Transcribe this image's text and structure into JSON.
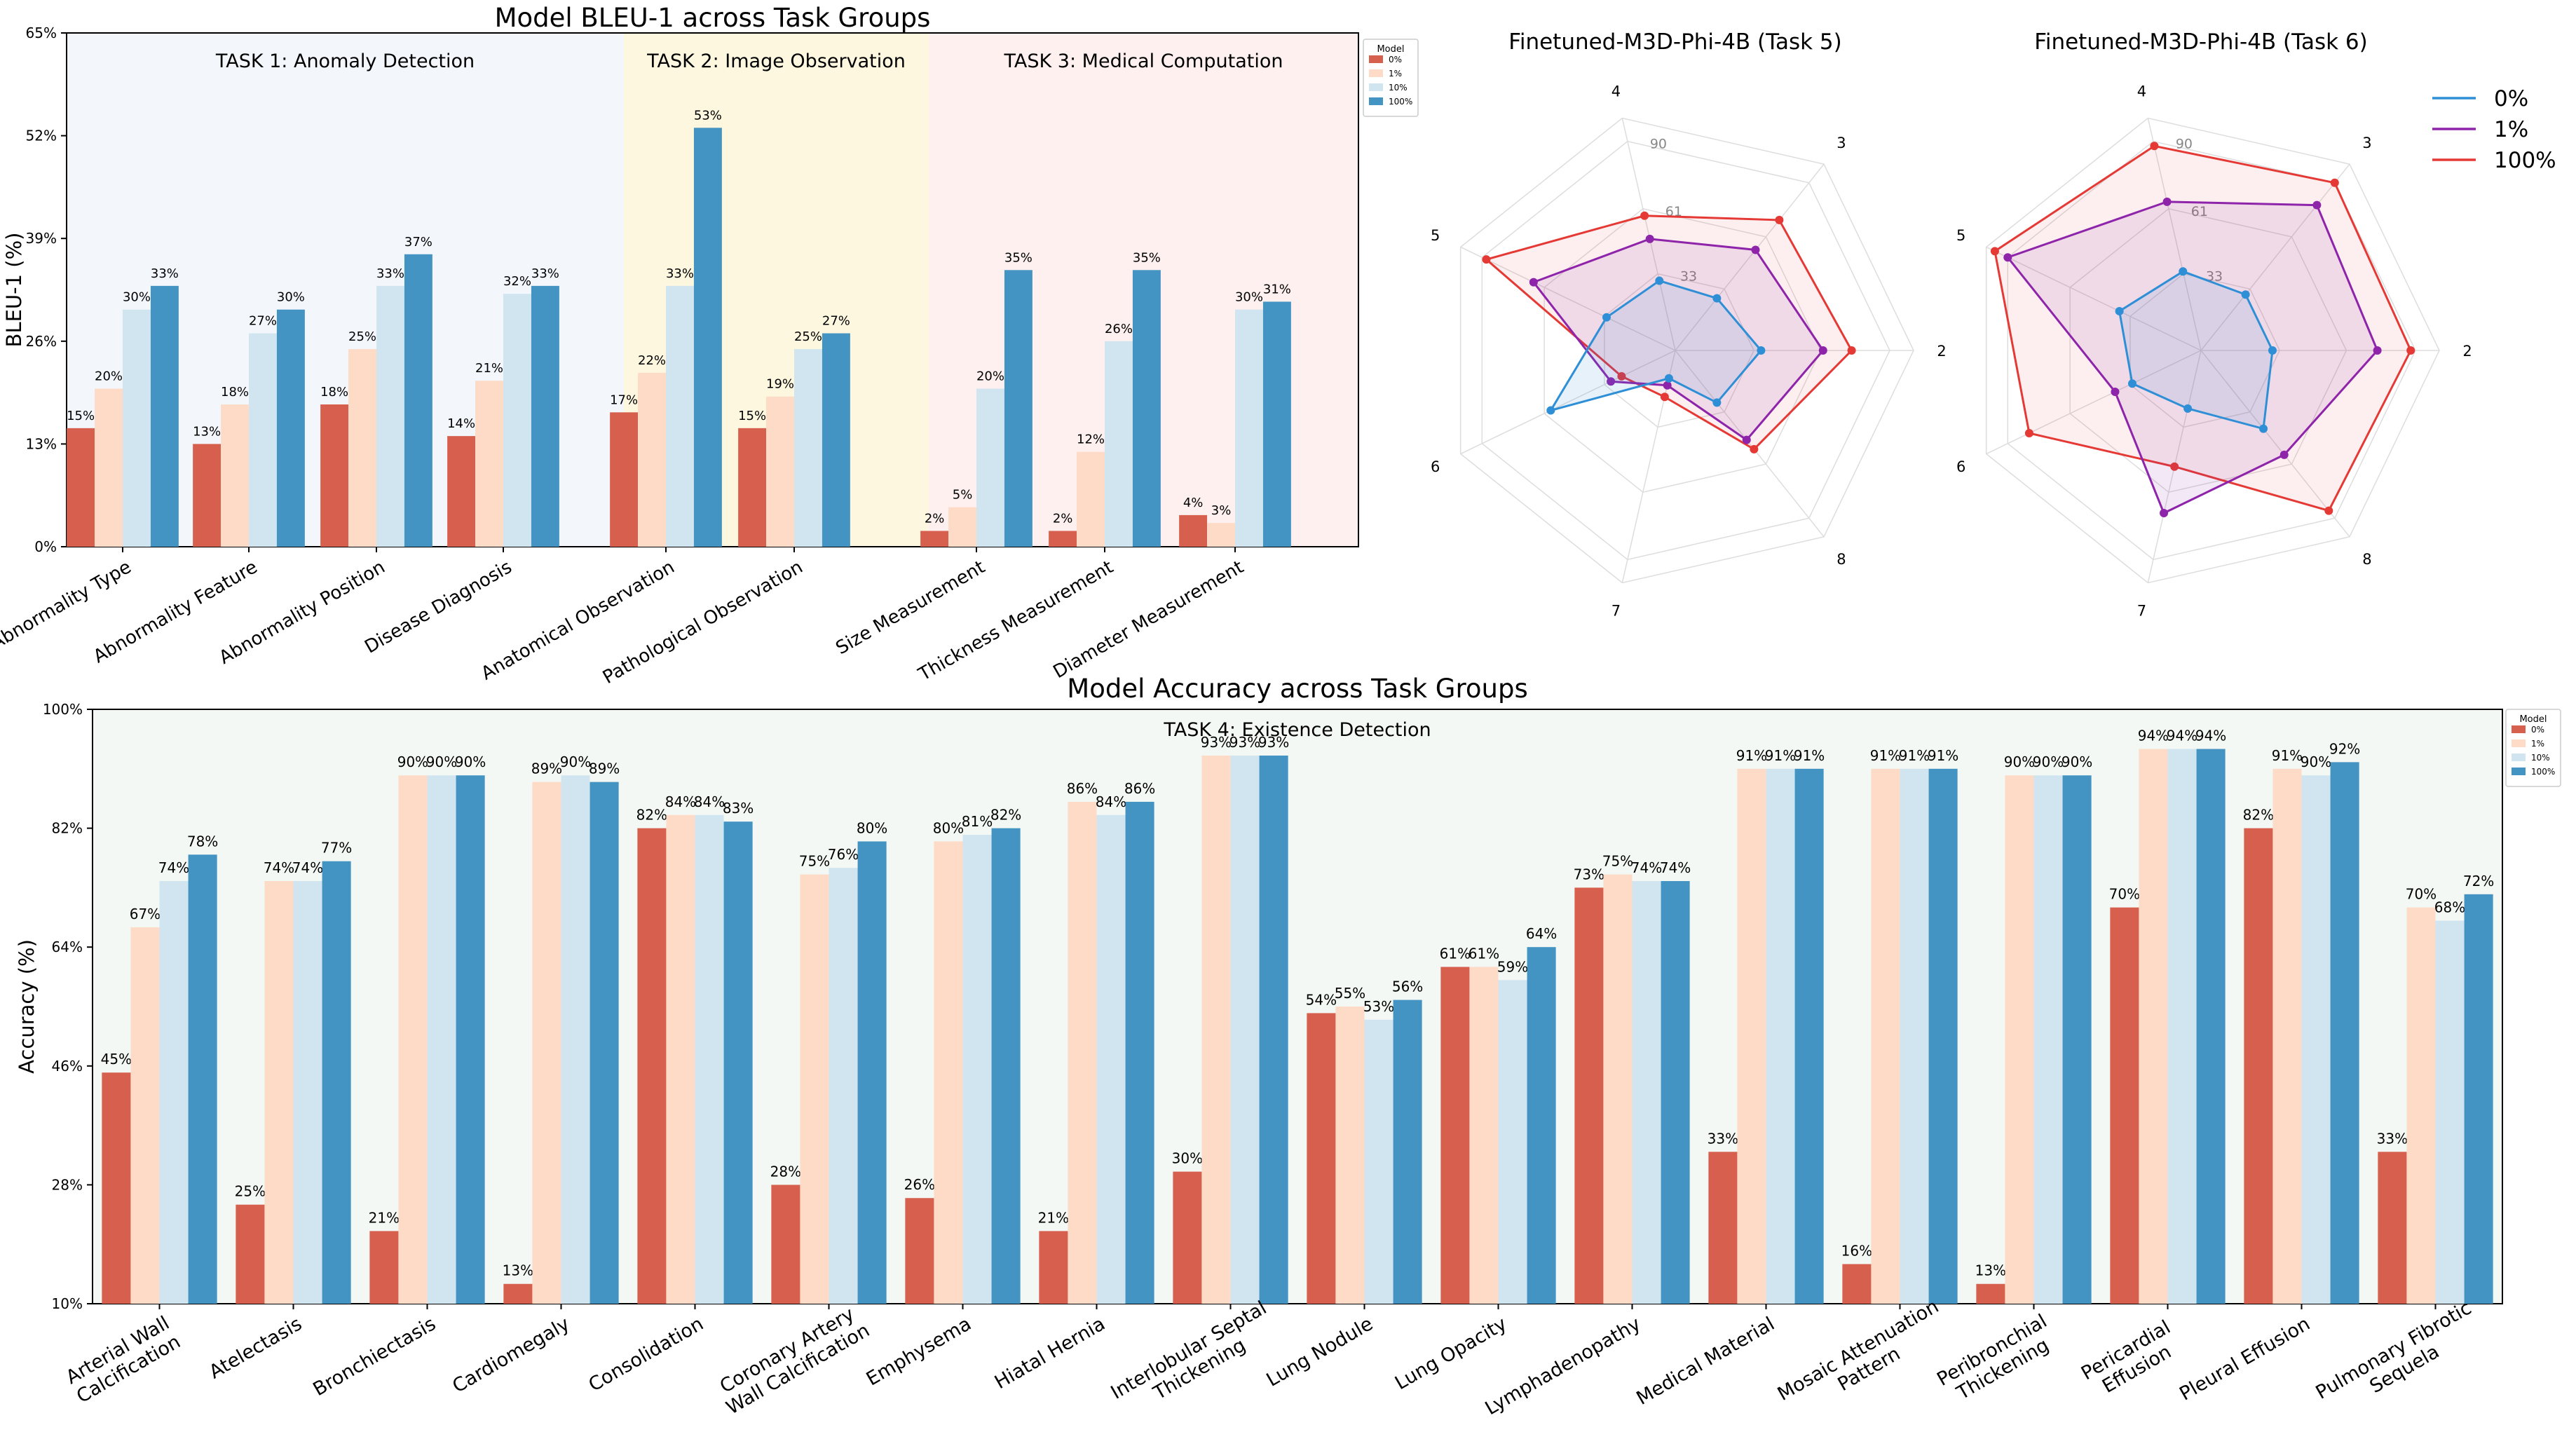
{
  "colors": {
    "s0": "#d6604d",
    "s1": "#fddbc7",
    "s10": "#d1e5f0",
    "s100": "#4393c3"
  },
  "chart_data": [
    {
      "type": "bar",
      "title": "Model BLEU-1 across Task Groups",
      "ylabel": "BLEU-1 (%)",
      "ylim": [
        0,
        65
      ],
      "yticks": [
        "0%",
        "13%",
        "26%",
        "39%",
        "52%",
        "65%"
      ],
      "legend_title": "Model",
      "legend_position": "upper-right",
      "groups": [
        {
          "label": "TASK 1: Anomaly Detection",
          "color": "#f3f7fc"
        },
        {
          "label": "TASK 2: Image Observation",
          "color": "#fdf7df"
        },
        {
          "label": "TASK 3: Medical Computation",
          "color": "#fdf0ef"
        }
      ],
      "categories": [
        "Abnormality Type",
        "Abnormality Feature",
        "Abnormality Position",
        "Disease Diagnosis",
        "Anatomical Observation",
        "Pathological Observation",
        "Size Measurement",
        "Thickness Measurement",
        "Diameter Measurement"
      ],
      "category_group": [
        0,
        0,
        0,
        0,
        1,
        1,
        2,
        2,
        2
      ],
      "series": [
        {
          "name": "0%",
          "values": [
            15,
            13,
            18,
            14,
            17,
            15,
            2,
            2,
            4
          ]
        },
        {
          "name": "1%",
          "values": [
            20,
            18,
            25,
            21,
            22,
            19,
            5,
            12,
            3
          ]
        },
        {
          "name": "10%",
          "values": [
            30,
            27,
            33,
            32,
            33,
            25,
            20,
            26,
            30
          ]
        },
        {
          "name": "100%",
          "values": [
            33,
            30,
            37,
            33,
            53,
            27,
            35,
            35,
            31
          ]
        }
      ]
    },
    {
      "type": "radar",
      "title": "Finetuned-M3D-Phi-4B (Task 5)",
      "axes": [
        "2",
        "3",
        "4",
        "5",
        "6",
        "7",
        "8"
      ],
      "rlim": [
        0,
        100
      ],
      "rticks": [
        "33",
        "61",
        "90"
      ],
      "series": [
        {
          "name": "0%",
          "values": [
            36,
            28,
            30,
            32,
            58,
            12,
            28
          ]
        },
        {
          "name": "1%",
          "values": [
            62,
            54,
            48,
            66,
            30,
            15,
            48
          ]
        },
        {
          "name": "100%",
          "values": [
            74,
            70,
            58,
            88,
            25,
            20,
            53
          ]
        }
      ]
    },
    {
      "type": "radar",
      "title": "Finetuned-M3D-Phi-4B (Task 6)",
      "axes": [
        "2",
        "3",
        "4",
        "5",
        "6",
        "7",
        "8"
      ],
      "rlim": [
        0,
        100
      ],
      "rticks": [
        "33",
        "61",
        "90"
      ],
      "legend_position": "upper-right",
      "series": [
        {
          "name": "0%",
          "values": [
            30,
            30,
            34,
            38,
            32,
            25,
            42
          ]
        },
        {
          "name": "1%",
          "values": [
            74,
            78,
            64,
            90,
            40,
            70,
            56
          ]
        },
        {
          "name": "100%",
          "values": [
            88,
            90,
            88,
            96,
            80,
            50,
            86
          ]
        }
      ]
    },
    {
      "type": "bar",
      "title": "Model Accuracy across Task Groups",
      "ylabel": "Accuracy (%)",
      "ylim": [
        10,
        100
      ],
      "yticks": [
        "10%",
        "28%",
        "46%",
        "64%",
        "82%",
        "100%"
      ],
      "legend_title": "Model",
      "legend_position": "upper-right",
      "groups": [
        {
          "label": "TASK 4: Existence Detection",
          "color": "#f3f8f4"
        }
      ],
      "categories": [
        "Arterial Wall\nCalcification",
        "Atelectasis",
        "Bronchiectasis",
        "Cardiomegaly",
        "Consolidation",
        "Coronary Artery\nWall Calcification",
        "Emphysema",
        "Hiatal Hernia",
        "Interlobular Septal\nThickening",
        "Lung Nodule",
        "Lung Opacity",
        "Lymphadenopathy",
        "Medical Material",
        "Mosaic Attenuation\nPattern",
        "Peribronchial\nThickening",
        "Pericardial\nEffusion",
        "Pleural Effusion",
        "Pulmonary Fibrotic\nSequela"
      ],
      "series": [
        {
          "name": "0%",
          "values": [
            45,
            25,
            21,
            13,
            82,
            28,
            26,
            21,
            30,
            54,
            61,
            73,
            33,
            16,
            13,
            70,
            82,
            33
          ]
        },
        {
          "name": "1%",
          "values": [
            67,
            74,
            90,
            89,
            84,
            75,
            80,
            86,
            93,
            55,
            61,
            75,
            91,
            91,
            90,
            94,
            91,
            70
          ]
        },
        {
          "name": "10%",
          "values": [
            74,
            74,
            90,
            90,
            84,
            76,
            81,
            84,
            93,
            53,
            59,
            74,
            91,
            91,
            90,
            94,
            90,
            68
          ]
        },
        {
          "name": "100%",
          "values": [
            78,
            77,
            90,
            89,
            83,
            80,
            82,
            86,
            93,
            56,
            64,
            74,
            91,
            91,
            90,
            94,
            92,
            72
          ]
        }
      ]
    }
  ]
}
